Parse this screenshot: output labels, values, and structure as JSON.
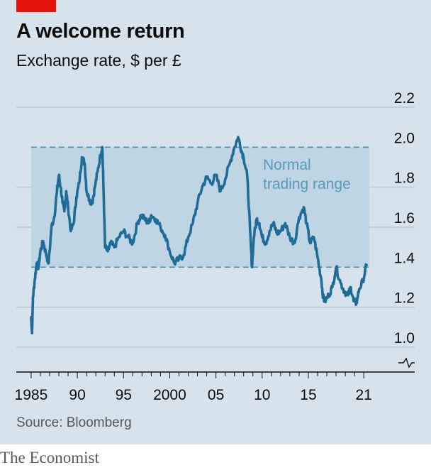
{
  "header": {
    "title": "A welcome return",
    "subtitle": "Exchange rate, $ per £"
  },
  "footer": {
    "source": "Source: Bloomberg",
    "brand": "The Economist"
  },
  "colors": {
    "accent": "#e3120b",
    "line": "#1f6c98",
    "band": "#bfd5e3",
    "band_dash": "#4e8fb1",
    "background": "#d6e3ec"
  },
  "chart_data": {
    "type": "line",
    "title": "A welcome return",
    "subtitle": "Exchange rate, $ per £",
    "xlabel": "",
    "ylabel": "",
    "xlim": [
      1984.7,
      2021.6
    ],
    "ylim": [
      1.0,
      2.2
    ],
    "y_axis_break": true,
    "y_ticks": [
      "1.0",
      "1.2",
      "1.4",
      "1.6",
      "1.8",
      "2.0",
      "2.2"
    ],
    "y_tick_values": [
      1.0,
      1.2,
      1.4,
      1.6,
      1.8,
      2.0,
      2.2
    ],
    "x_ticks": [
      "1985",
      "90",
      "95",
      "2000",
      "05",
      "10",
      "15",
      "21"
    ],
    "x_tick_values": [
      1985,
      1990,
      1995,
      2000,
      2005,
      2010,
      2015,
      2021
    ],
    "band": {
      "label_line1": "Normal",
      "label_line2": "trading range",
      "from": 1.4,
      "to": 2.0,
      "x_start": 1985
    },
    "series": [
      {
        "x": [
          1985.0,
          1985.1,
          1985.2,
          1985.4,
          1985.6,
          1985.8,
          1986.0,
          1986.3,
          1986.6,
          1986.9,
          1987.2,
          1987.5,
          1987.8,
          1988.0,
          1988.2,
          1988.4,
          1988.6,
          1988.8,
          1989.0,
          1989.3,
          1989.6,
          1989.9,
          1990.2,
          1990.5,
          1990.8,
          1991.0,
          1991.3,
          1991.6,
          1991.9,
          1992.2,
          1992.5,
          1992.7,
          1992.8,
          1993.0,
          1993.3,
          1993.6,
          1994.0,
          1994.5,
          1995.0,
          1995.5,
          1996.0,
          1996.5,
          1996.9,
          1997.3,
          1997.7,
          1998.0,
          1998.5,
          1999.0,
          1999.5,
          2000.0,
          2000.5,
          2001.0,
          2001.5,
          2002.0,
          2002.5,
          2003.0,
          2003.5,
          2004.0,
          2004.5,
          2005.0,
          2005.5,
          2006.0,
          2006.5,
          2007.0,
          2007.4,
          2007.8,
          2008.0,
          2008.4,
          2008.7,
          2008.9,
          2009.1,
          2009.4,
          2009.7,
          2010.0,
          2010.4,
          2010.8,
          2011.2,
          2011.6,
          2012.0,
          2012.5,
          2013.0,
          2013.5,
          2014.0,
          2014.5,
          2014.8,
          2015.2,
          2015.6,
          2016.0,
          2016.4,
          2016.6,
          2016.8,
          2017.2,
          2017.6,
          2018.0,
          2018.5,
          2018.9,
          2019.3,
          2019.6,
          2019.9,
          2020.2,
          2020.5,
          2020.9,
          2021.3
        ],
        "values": [
          1.15,
          1.07,
          1.25,
          1.34,
          1.42,
          1.4,
          1.48,
          1.53,
          1.47,
          1.42,
          1.6,
          1.65,
          1.78,
          1.86,
          1.8,
          1.72,
          1.68,
          1.78,
          1.7,
          1.58,
          1.62,
          1.75,
          1.82,
          1.95,
          1.92,
          1.78,
          1.74,
          1.72,
          1.8,
          1.88,
          1.96,
          2.0,
          1.85,
          1.5,
          1.48,
          1.52,
          1.5,
          1.55,
          1.58,
          1.55,
          1.52,
          1.62,
          1.66,
          1.64,
          1.62,
          1.66,
          1.64,
          1.6,
          1.56,
          1.48,
          1.42,
          1.44,
          1.46,
          1.55,
          1.62,
          1.72,
          1.8,
          1.85,
          1.82,
          1.86,
          1.78,
          1.84,
          1.92,
          2.0,
          2.05,
          1.98,
          1.95,
          1.85,
          1.58,
          1.4,
          1.55,
          1.64,
          1.62,
          1.55,
          1.52,
          1.58,
          1.62,
          1.57,
          1.58,
          1.62,
          1.55,
          1.52,
          1.65,
          1.7,
          1.62,
          1.52,
          1.55,
          1.45,
          1.34,
          1.25,
          1.23,
          1.26,
          1.3,
          1.4,
          1.32,
          1.28,
          1.26,
          1.3,
          1.23,
          1.22,
          1.29,
          1.33,
          1.41
        ]
      }
    ]
  }
}
